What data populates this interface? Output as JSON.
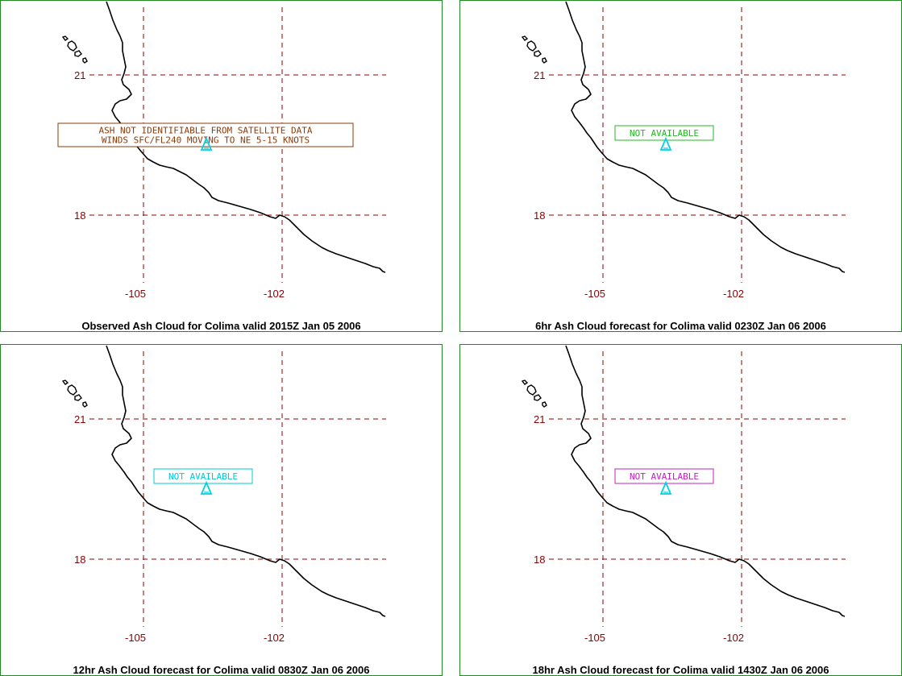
{
  "panels": [
    {
      "caption": "Observed Ash Cloud for Colima valid 2015Z Jan 05 2006",
      "note_lines": [
        "ASH NOT IDENTIFIABLE FROM SATELLITE DATA",
        "WINDS SFC/FL240 MOVING TO NE 5-15 KNOTS"
      ],
      "note_color": "#8b3a0a"
    },
    {
      "caption": "6hr Ash Cloud forecast for Colima valid 0230Z Jan 06 2006",
      "note_lines": [
        "NOT AVAILABLE"
      ],
      "note_color": "#22b822"
    },
    {
      "caption": "12hr Ash Cloud forecast for Colima valid 0830Z Jan 06 2006",
      "note_lines": [
        "NOT AVAILABLE"
      ],
      "note_color": "#00c8d8"
    },
    {
      "caption": "18hr Ash Cloud forecast for Colima valid 1430Z Jan 06 2006",
      "note_lines": [
        "NOT AVAILABLE"
      ],
      "note_color": "#c020c0"
    }
  ],
  "grid": {
    "lat_labels": [
      "21",
      "18"
    ],
    "lon_labels": [
      "-105",
      "-102"
    ],
    "grid_color": "#8b0000"
  },
  "volcano": {
    "name_icon": "volcano-marker-icon",
    "color": "#00d0e0"
  },
  "coastline_color": "#000000",
  "panel_border_color": "#1f8a1f"
}
